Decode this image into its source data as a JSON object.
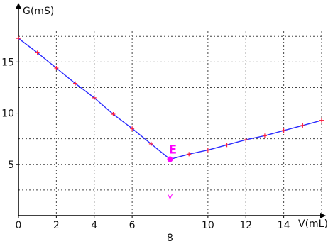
{
  "chart_data": {
    "type": "line",
    "title": "",
    "xlabel": "V(mL)",
    "ylabel": "G(mS)",
    "xlim": [
      0,
      16
    ],
    "ylim": [
      0,
      18
    ],
    "x_ticks": [
      0,
      2,
      4,
      6,
      10,
      12,
      14
    ],
    "y_ticks": [
      5,
      10,
      15
    ],
    "grid": true,
    "series": [
      {
        "name": "",
        "x": [
          0,
          1,
          2,
          3,
          4,
          5,
          6,
          7,
          8
        ],
        "y": [
          17.3,
          15.9,
          14.4,
          12.9,
          11.5,
          9.9,
          8.5,
          7.0,
          5.5
        ]
      },
      {
        "name": "",
        "x": [
          8,
          9,
          10,
          11,
          12,
          13,
          14,
          15,
          16
        ],
        "y": [
          5.5,
          6.0,
          6.4,
          6.9,
          7.4,
          7.8,
          8.3,
          8.8,
          9.3
        ]
      }
    ],
    "equivalence_point": {
      "label": "E",
      "x": 8,
      "y": 5.5,
      "x_label": "8"
    },
    "colors": {
      "line": "#2a2aff",
      "marker": "#ff1a3c",
      "point": "#ff00ff",
      "grid": "#444444",
      "axis": "#000000"
    }
  }
}
